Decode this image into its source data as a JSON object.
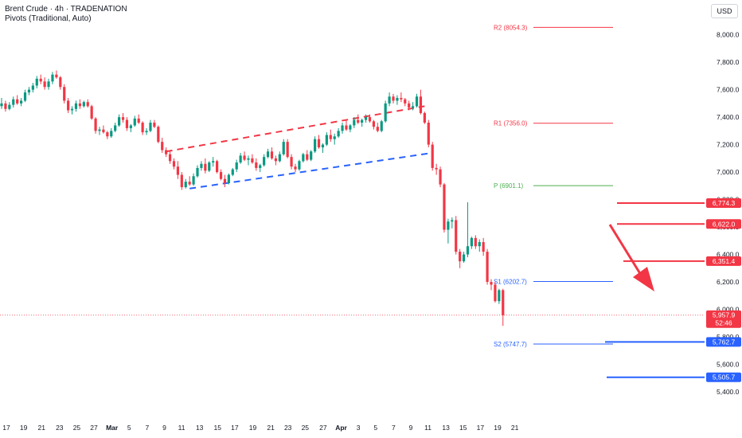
{
  "header": {
    "line1": "Brent Crude · 4h · TRADENATION",
    "line2": "Pivots (Traditional, Auto)"
  },
  "currency_button": "USD",
  "chart_data": {
    "type": "candlestick",
    "y_axis": {
      "ticks": [
        "8,000.0",
        "7,800.0",
        "7,600.0",
        "7,400.0",
        "7,200.0",
        "7,000.0",
        "6,800.0",
        "6,600.0",
        "6,400.0",
        "6,200.0",
        "6,000.0",
        "5,800.0",
        "5,600.0",
        "5,400.0"
      ],
      "tick_values": [
        8000,
        7800,
        7600,
        7400,
        7200,
        7000,
        6800,
        6600,
        6400,
        6200,
        6000,
        5800,
        5600,
        5400
      ],
      "range": [
        5330,
        8120
      ]
    },
    "x_axis": {
      "ticks": [
        "17",
        "19",
        "21",
        "23",
        "25",
        "27",
        "Mar",
        "5",
        "7",
        "9",
        "11",
        "13",
        "15",
        "17",
        "19",
        "21",
        "23",
        "25",
        "27",
        "Apr",
        "3",
        "5",
        "7",
        "9",
        "11",
        "13",
        "15",
        "17",
        "19",
        "21"
      ],
      "index": [
        0,
        22,
        45,
        68,
        90,
        112,
        135,
        157,
        180,
        202,
        224,
        247,
        270,
        292,
        315,
        338,
        360,
        382,
        405,
        428,
        450,
        472,
        495,
        517,
        539,
        562,
        584,
        606,
        628,
        650
      ]
    },
    "candles": [
      [
        7480,
        7540,
        7460,
        7500
      ],
      [
        7500,
        7520,
        7440,
        7460
      ],
      [
        7460,
        7510,
        7450,
        7490
      ],
      [
        7490,
        7550,
        7470,
        7530
      ],
      [
        7530,
        7560,
        7490,
        7500
      ],
      [
        7500,
        7540,
        7480,
        7520
      ],
      [
        7520,
        7600,
        7510,
        7580
      ],
      [
        7580,
        7620,
        7560,
        7600
      ],
      [
        7600,
        7650,
        7580,
        7630
      ],
      [
        7630,
        7700,
        7610,
        7680
      ],
      [
        7680,
        7710,
        7640,
        7660
      ],
      [
        7660,
        7690,
        7600,
        7620
      ],
      [
        7620,
        7680,
        7600,
        7660
      ],
      [
        7660,
        7730,
        7640,
        7710
      ],
      [
        7710,
        7740,
        7680,
        7690
      ],
      [
        7690,
        7700,
        7600,
        7620
      ],
      [
        7620,
        7640,
        7500,
        7520
      ],
      [
        7520,
        7540,
        7430,
        7450
      ],
      [
        7450,
        7480,
        7420,
        7460
      ],
      [
        7460,
        7520,
        7440,
        7500
      ],
      [
        7500,
        7530,
        7460,
        7480
      ],
      [
        7480,
        7520,
        7470,
        7510
      ],
      [
        7510,
        7530,
        7470,
        7480
      ],
      [
        7480,
        7490,
        7380,
        7390
      ],
      [
        7390,
        7400,
        7280,
        7300
      ],
      [
        7300,
        7330,
        7270,
        7310
      ],
      [
        7310,
        7340,
        7280,
        7290
      ],
      [
        7290,
        7300,
        7240,
        7260
      ],
      [
        7260,
        7320,
        7250,
        7300
      ],
      [
        7300,
        7360,
        7290,
        7340
      ],
      [
        7340,
        7420,
        7330,
        7400
      ],
      [
        7400,
        7430,
        7360,
        7380
      ],
      [
        7380,
        7400,
        7300,
        7320
      ],
      [
        7320,
        7350,
        7290,
        7340
      ],
      [
        7340,
        7410,
        7330,
        7390
      ],
      [
        7390,
        7420,
        7350,
        7360
      ],
      [
        7360,
        7370,
        7270,
        7290
      ],
      [
        7290,
        7320,
        7270,
        7300
      ],
      [
        7300,
        7380,
        7290,
        7360
      ],
      [
        7360,
        7380,
        7320,
        7330
      ],
      [
        7330,
        7340,
        7210,
        7220
      ],
      [
        7220,
        7250,
        7140,
        7160
      ],
      [
        7160,
        7180,
        7110,
        7130
      ],
      [
        7130,
        7160,
        7060,
        7080
      ],
      [
        7080,
        7100,
        7020,
        7040
      ],
      [
        7040,
        7080,
        6950,
        6980
      ],
      [
        6980,
        7000,
        6870,
        6890
      ],
      [
        6890,
        6950,
        6880,
        6930
      ],
      [
        6930,
        6970,
        6900,
        6910
      ],
      [
        6910,
        6990,
        6900,
        6970
      ],
      [
        6970,
        7050,
        6960,
        7030
      ],
      [
        7030,
        7080,
        7010,
        7060
      ],
      [
        7060,
        7100,
        6990,
        7010
      ],
      [
        7010,
        7080,
        7000,
        7070
      ],
      [
        7070,
        7110,
        7040,
        7080
      ],
      [
        7080,
        7090,
        6990,
        7000
      ],
      [
        7000,
        7020,
        6940,
        6950
      ],
      [
        6950,
        6980,
        6890,
        6920
      ],
      [
        6920,
        6990,
        6910,
        6980
      ],
      [
        6980,
        7030,
        6970,
        7020
      ],
      [
        7020,
        7090,
        7000,
        7070
      ],
      [
        7070,
        7140,
        7060,
        7120
      ],
      [
        7120,
        7150,
        7080,
        7090
      ],
      [
        7090,
        7120,
        7050,
        7100
      ],
      [
        7100,
        7130,
        7060,
        7070
      ],
      [
        7070,
        7100,
        7010,
        7030
      ],
      [
        7030,
        7060,
        7000,
        7050
      ],
      [
        7050,
        7130,
        7040,
        7110
      ],
      [
        7110,
        7170,
        7100,
        7150
      ],
      [
        7150,
        7180,
        7090,
        7100
      ],
      [
        7100,
        7120,
        7050,
        7080
      ],
      [
        7080,
        7150,
        7070,
        7130
      ],
      [
        7130,
        7240,
        7120,
        7220
      ],
      [
        7220,
        7240,
        7100,
        7110
      ],
      [
        7110,
        7130,
        7020,
        7040
      ],
      [
        7040,
        7060,
        7000,
        7020
      ],
      [
        7020,
        7090,
        7010,
        7080
      ],
      [
        7080,
        7140,
        7070,
        7130
      ],
      [
        7130,
        7160,
        7080,
        7090
      ],
      [
        7090,
        7160,
        7080,
        7150
      ],
      [
        7150,
        7260,
        7140,
        7240
      ],
      [
        7240,
        7270,
        7170,
        7180
      ],
      [
        7180,
        7210,
        7140,
        7200
      ],
      [
        7200,
        7290,
        7190,
        7270
      ],
      [
        7270,
        7310,
        7220,
        7240
      ],
      [
        7240,
        7280,
        7200,
        7260
      ],
      [
        7260,
        7320,
        7250,
        7300
      ],
      [
        7300,
        7360,
        7280,
        7340
      ],
      [
        7340,
        7380,
        7300,
        7310
      ],
      [
        7310,
        7350,
        7290,
        7340
      ],
      [
        7340,
        7400,
        7320,
        7380
      ],
      [
        7380,
        7420,
        7350,
        7360
      ],
      [
        7360,
        7390,
        7330,
        7380
      ],
      [
        7380,
        7420,
        7360,
        7400
      ],
      [
        7400,
        7420,
        7360,
        7370
      ],
      [
        7370,
        7380,
        7310,
        7330
      ],
      [
        7330,
        7360,
        7290,
        7300
      ],
      [
        7300,
        7380,
        7290,
        7370
      ],
      [
        7370,
        7520,
        7360,
        7500
      ],
      [
        7500,
        7580,
        7480,
        7550
      ],
      [
        7550,
        7570,
        7500,
        7520
      ],
      [
        7520,
        7560,
        7490,
        7540
      ],
      [
        7540,
        7580,
        7510,
        7530
      ],
      [
        7530,
        7540,
        7480,
        7500
      ],
      [
        7500,
        7520,
        7450,
        7470
      ],
      [
        7470,
        7510,
        7450,
        7480
      ],
      [
        7480,
        7570,
        7470,
        7550
      ],
      [
        7550,
        7600,
        7420,
        7430
      ],
      [
        7430,
        7440,
        7350,
        7360
      ],
      [
        7360,
        7380,
        7180,
        7200
      ],
      [
        7200,
        7220,
        7010,
        7030
      ],
      [
        7030,
        7060,
        6980,
        7020
      ],
      [
        7020,
        7040,
        6890,
        6910
      ],
      [
        6910,
        6920,
        6560,
        6580
      ],
      [
        6580,
        6660,
        6480,
        6640
      ],
      [
        6640,
        6670,
        6590,
        6650
      ],
      [
        6650,
        6680,
        6400,
        6420
      ],
      [
        6420,
        6440,
        6300,
        6350
      ],
      [
        6350,
        6420,
        6340,
        6400
      ],
      [
        6400,
        6780,
        6380,
        6460
      ],
      [
        6460,
        6530,
        6440,
        6520
      ],
      [
        6520,
        6540,
        6440,
        6460
      ],
      [
        6460,
        6510,
        6420,
        6490
      ],
      [
        6490,
        6520,
        6390,
        6420
      ],
      [
        6420,
        6440,
        6180,
        6200
      ],
      [
        6200,
        6220,
        6140,
        6180
      ],
      [
        6180,
        6200,
        6050,
        6060
      ],
      [
        6060,
        6150,
        6040,
        6140
      ],
      [
        6140,
        6150,
        5880,
        5958
      ]
    ],
    "trendlines": [
      {
        "color": "#f23645",
        "from": [
          42,
          7150
        ],
        "to": [
          108,
          7480
        ]
      },
      {
        "color": "#2962ff",
        "from": [
          48,
          6880
        ],
        "to": [
          110,
          7140
        ]
      }
    ],
    "pivots": [
      {
        "label": "R2 (8054.3)",
        "value": 8054.3,
        "color": "#f23645"
      },
      {
        "label": "R1 (7356.0)",
        "value": 7356.0,
        "color": "#f23645"
      },
      {
        "label": "P (6901.1)",
        "value": 6901.1,
        "color": "#4caf50"
      },
      {
        "label": "S1 (6202.7)",
        "value": 6202.7,
        "color": "#2962ff"
      },
      {
        "label": "S2 (5747.7)",
        "value": 5747.7,
        "color": "#2962ff"
      }
    ],
    "levels": [
      {
        "label": "6,774.3",
        "value": 6774.3,
        "color": "#f23645"
      },
      {
        "label": "6,622.0",
        "value": 6622.0,
        "color": "#f23645"
      },
      {
        "label": "6,351.4",
        "value": 6351.4,
        "color": "#f23645"
      },
      {
        "label": "5,762.7",
        "value": 5762.7,
        "color": "#2962ff"
      },
      {
        "label": "5,505.7",
        "value": 5505.7,
        "color": "#2962ff"
      }
    ],
    "last_price": {
      "label": "5,957.9",
      "value": 5957.9,
      "countdown": "52:46",
      "color": "#f23645"
    },
    "up_color": "#089981",
    "down_color": "#f23645",
    "arrow_color": "#f23645"
  }
}
